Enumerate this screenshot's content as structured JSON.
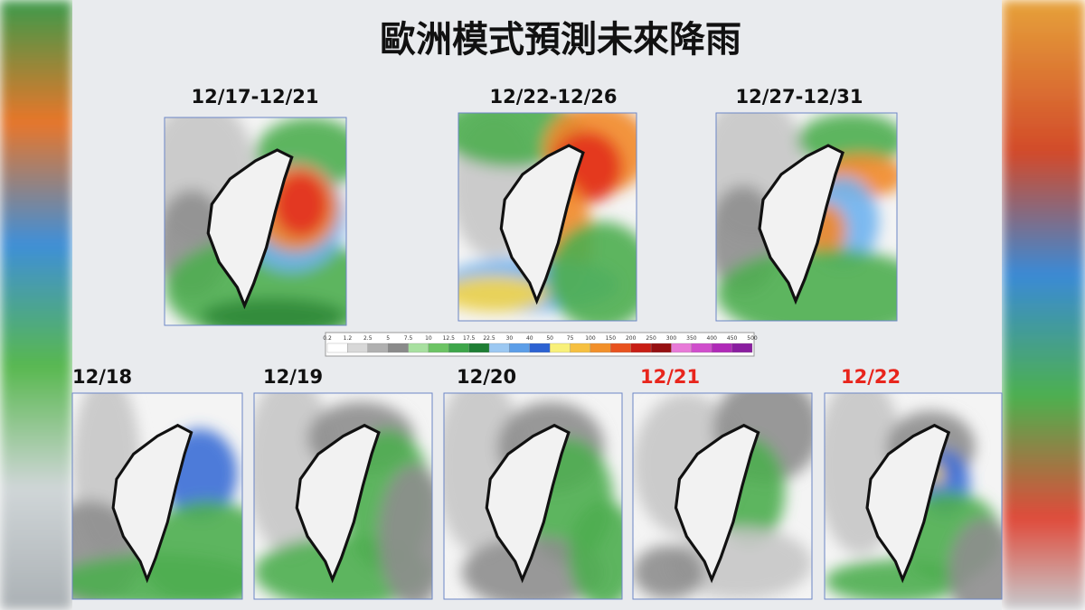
{
  "title": "歐洲模式預測未來降雨",
  "periods": [
    "12/17-12/21",
    "12/22-12/26",
    "12/27-12/31"
  ],
  "legend": {
    "ticks": [
      "0.2",
      "1.2",
      "2.5",
      "5",
      "7.5",
      "10",
      "12.5",
      "17.5",
      "22.5",
      "30",
      "40",
      "50",
      "75",
      "100",
      "150",
      "200",
      "250",
      "300",
      "350",
      "400",
      "450",
      "500"
    ]
  },
  "days": [
    "12/18",
    "12/19",
    "12/20",
    "12/21",
    "12/22"
  ]
}
